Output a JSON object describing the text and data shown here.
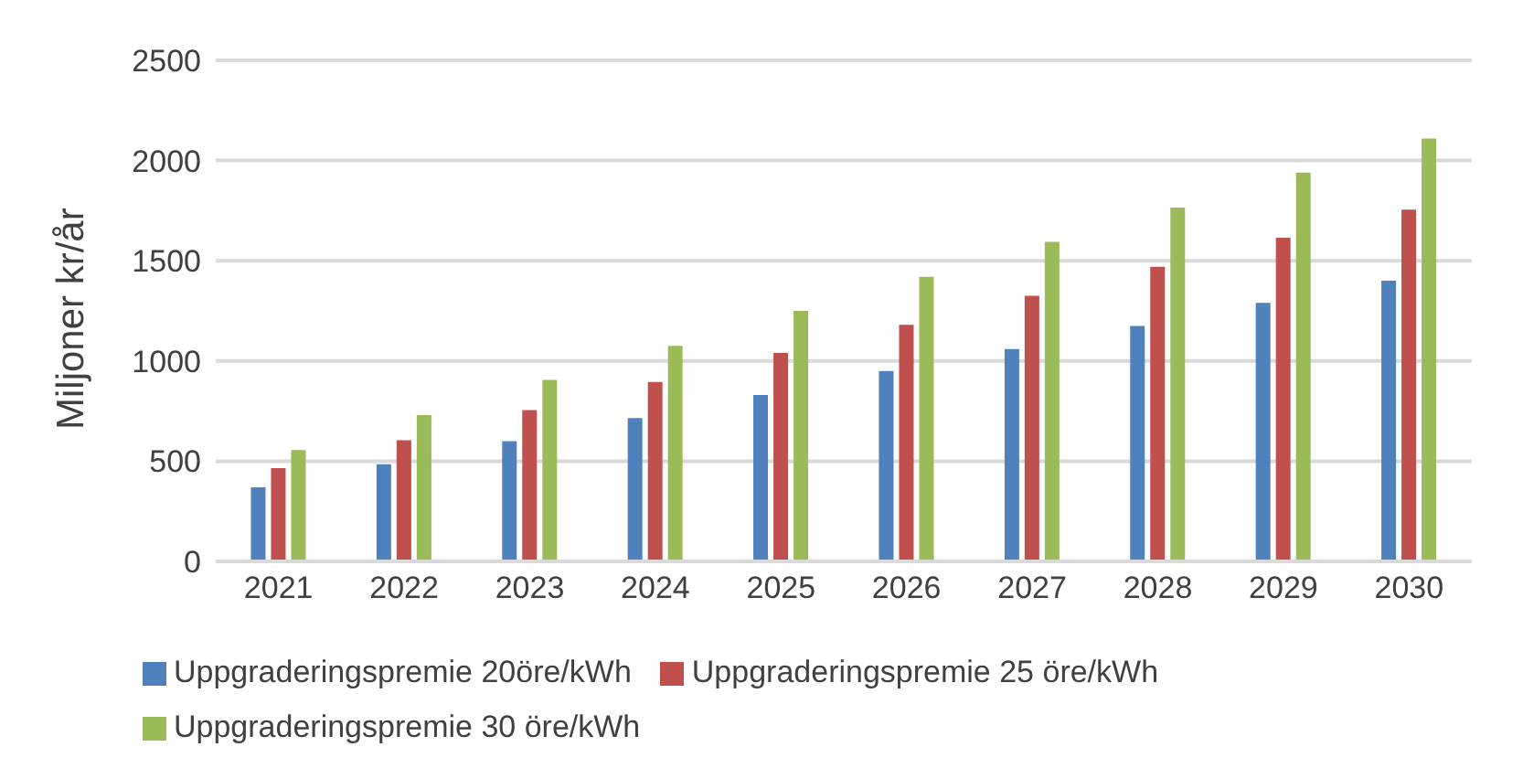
{
  "chart_data": {
    "type": "bar",
    "ylabel": "Miljoner kr/år",
    "categories": [
      "2021",
      "2022",
      "2023",
      "2024",
      "2025",
      "2026",
      "2027",
      "2028",
      "2029",
      "2030"
    ],
    "series": [
      {
        "name": "Uppgraderingspremie 20öre/kWh",
        "color": "#4f81bd",
        "values": [
          370,
          485,
          600,
          715,
          830,
          950,
          1060,
          1175,
          1290,
          1400
        ]
      },
      {
        "name": "Uppgraderingspremie 25 öre/kWh",
        "color": "#c0504d",
        "values": [
          465,
          605,
          755,
          895,
          1040,
          1180,
          1325,
          1470,
          1615,
          1755
        ]
      },
      {
        "name": "Uppgraderingspremie 30 öre/kWh",
        "color": "#9bbb59",
        "values": [
          555,
          730,
          905,
          1075,
          1250,
          1420,
          1595,
          1765,
          1940,
          2110
        ]
      }
    ],
    "ylim": [
      0,
      2500
    ],
    "yticks": [
      0,
      500,
      1000,
      1500,
      2000,
      2500
    ],
    "grid": "y",
    "legend": "bottom"
  }
}
